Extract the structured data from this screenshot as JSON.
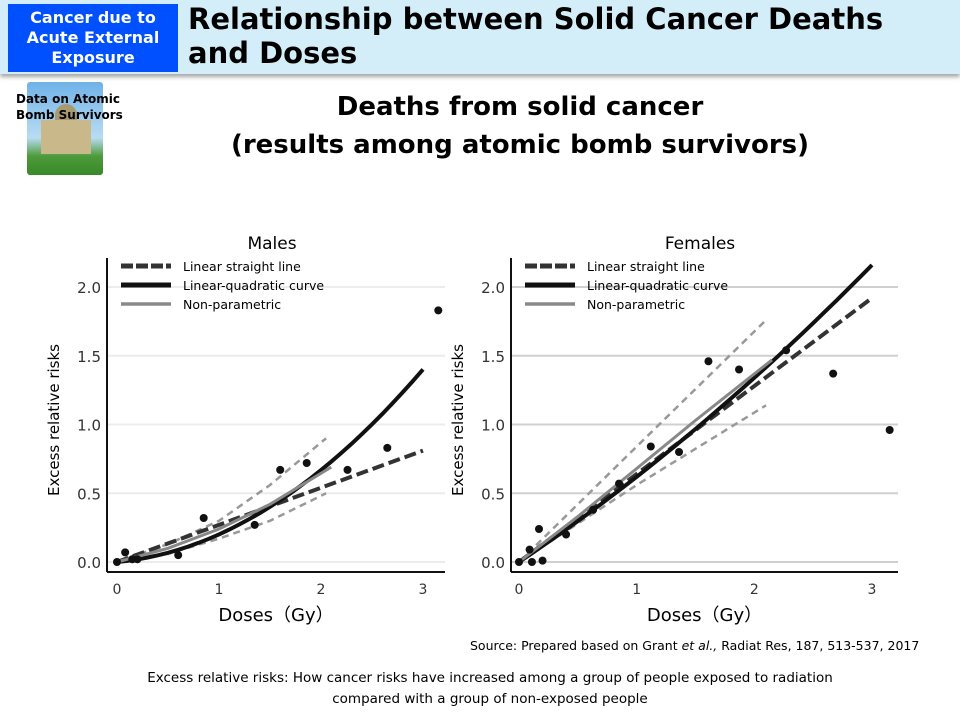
{
  "header": {
    "badge": "Cancer due to\nAcute External\nExposure",
    "title": "Relationship between Solid Cancer Deaths and Doses"
  },
  "sidebar_image": {
    "label": "Data on Atomic\nBomb Survivors"
  },
  "subtitle": "Deaths from solid cancer\n(results among atomic bomb survivors)",
  "source": {
    "prefix": "Source: Prepared based on Grant ",
    "italic": "et al.,",
    "suffix": "  Radiat Res, 187, 513-537, 2017"
  },
  "footnote": "Excess relative risks: How cancer risks have increased among a group of people exposed to radiation\ncompared with a group of non-exposed people",
  "chart_data": [
    {
      "type": "scatter",
      "title": "Males",
      "xlabel": "Doses（Gy）",
      "ylabel": "Excess relative risks",
      "xlim": [
        0,
        3.2
      ],
      "ylim": [
        0,
        2.2
      ],
      "xticks": [
        "0",
        "1",
        "2",
        "3"
      ],
      "yticks": [
        "0.0",
        "0.5",
        "1.0",
        "1.5",
        "2.0"
      ],
      "grid": true,
      "legend": "top-left",
      "points": [
        [
          0,
          0
        ],
        [
          0.08,
          0.07
        ],
        [
          0.15,
          0.02
        ],
        [
          0.2,
          0.02
        ],
        [
          0.6,
          0.05
        ],
        [
          0.85,
          0.32
        ],
        [
          1.35,
          0.27
        ],
        [
          1.6,
          0.67
        ],
        [
          1.86,
          0.72
        ],
        [
          2.26,
          0.67
        ],
        [
          2.65,
          0.83
        ],
        [
          3.15,
          1.83
        ]
      ],
      "series": [
        {
          "name": "Linear straight line",
          "kind": "linear",
          "slope": 0.27,
          "xmax": 3.0,
          "color": "#333333"
        },
        {
          "name": "Linear-quadratic curve",
          "kind": "lq",
          "a": 0.068,
          "b": 0.133,
          "xmax": 3.0,
          "color": "#111111"
        },
        {
          "name": "Non-parametric",
          "kind": "nonparam",
          "points": [
            [
              0,
              0
            ],
            [
              0.5,
              0.1
            ],
            [
              1,
              0.24
            ],
            [
              1.5,
              0.42
            ],
            [
              2.1,
              0.69
            ]
          ],
          "color": "#888888"
        }
      ],
      "ci": {
        "upper": [
          [
            0,
            0
          ],
          [
            0.5,
            0.13
          ],
          [
            1,
            0.3
          ],
          [
            1.5,
            0.56
          ],
          [
            2.05,
            0.9
          ]
        ],
        "lower": [
          [
            0,
            0
          ],
          [
            0.5,
            0.06
          ],
          [
            1,
            0.17
          ],
          [
            1.5,
            0.3
          ],
          [
            2.05,
            0.5
          ]
        ]
      }
    },
    {
      "type": "scatter",
      "title": "Females",
      "xlabel": "Doses（Gy）",
      "ylabel": "Excess relative risks",
      "xlim": [
        0,
        3.2
      ],
      "ylim": [
        0,
        2.2
      ],
      "xticks": [
        "0",
        "1",
        "2",
        "3"
      ],
      "yticks": [
        "0.0",
        "0.5",
        "1.0",
        "1.5",
        "2.0"
      ],
      "grid": true,
      "legend": "top-left",
      "points": [
        [
          0,
          0
        ],
        [
          0.09,
          0.09
        ],
        [
          0.11,
          0
        ],
        [
          0.17,
          0.24
        ],
        [
          0.2,
          0.01
        ],
        [
          0.4,
          0.2
        ],
        [
          0.63,
          0.38
        ],
        [
          0.85,
          0.57
        ],
        [
          1.12,
          0.84
        ],
        [
          1.36,
          0.8
        ],
        [
          1.61,
          1.46
        ],
        [
          1.87,
          1.4
        ],
        [
          2.27,
          1.54
        ],
        [
          2.67,
          1.37
        ],
        [
          3.15,
          0.96
        ]
      ],
      "series": [
        {
          "name": "Linear straight line",
          "kind": "linear",
          "slope": 0.64,
          "xmax": 3.0,
          "color": "#333333"
        },
        {
          "name": "Linear-quadratic curve",
          "kind": "lq",
          "a": 0.57,
          "b": 0.05,
          "xmax": 3.0,
          "color": "#111111"
        },
        {
          "name": "Non-parametric",
          "kind": "nonparam",
          "points": [
            [
              0,
              0
            ],
            [
              0.5,
              0.33
            ],
            [
              1,
              0.68
            ],
            [
              1.5,
              1.03
            ],
            [
              2.15,
              1.47
            ]
          ],
          "color": "#888888"
        }
      ],
      "ci": {
        "upper": [
          [
            0,
            0
          ],
          [
            1,
            0.84
          ],
          [
            2.1,
            1.76
          ]
        ],
        "lower": [
          [
            0,
            0
          ],
          [
            1,
            0.56
          ],
          [
            2.1,
            1.14
          ]
        ]
      }
    }
  ]
}
